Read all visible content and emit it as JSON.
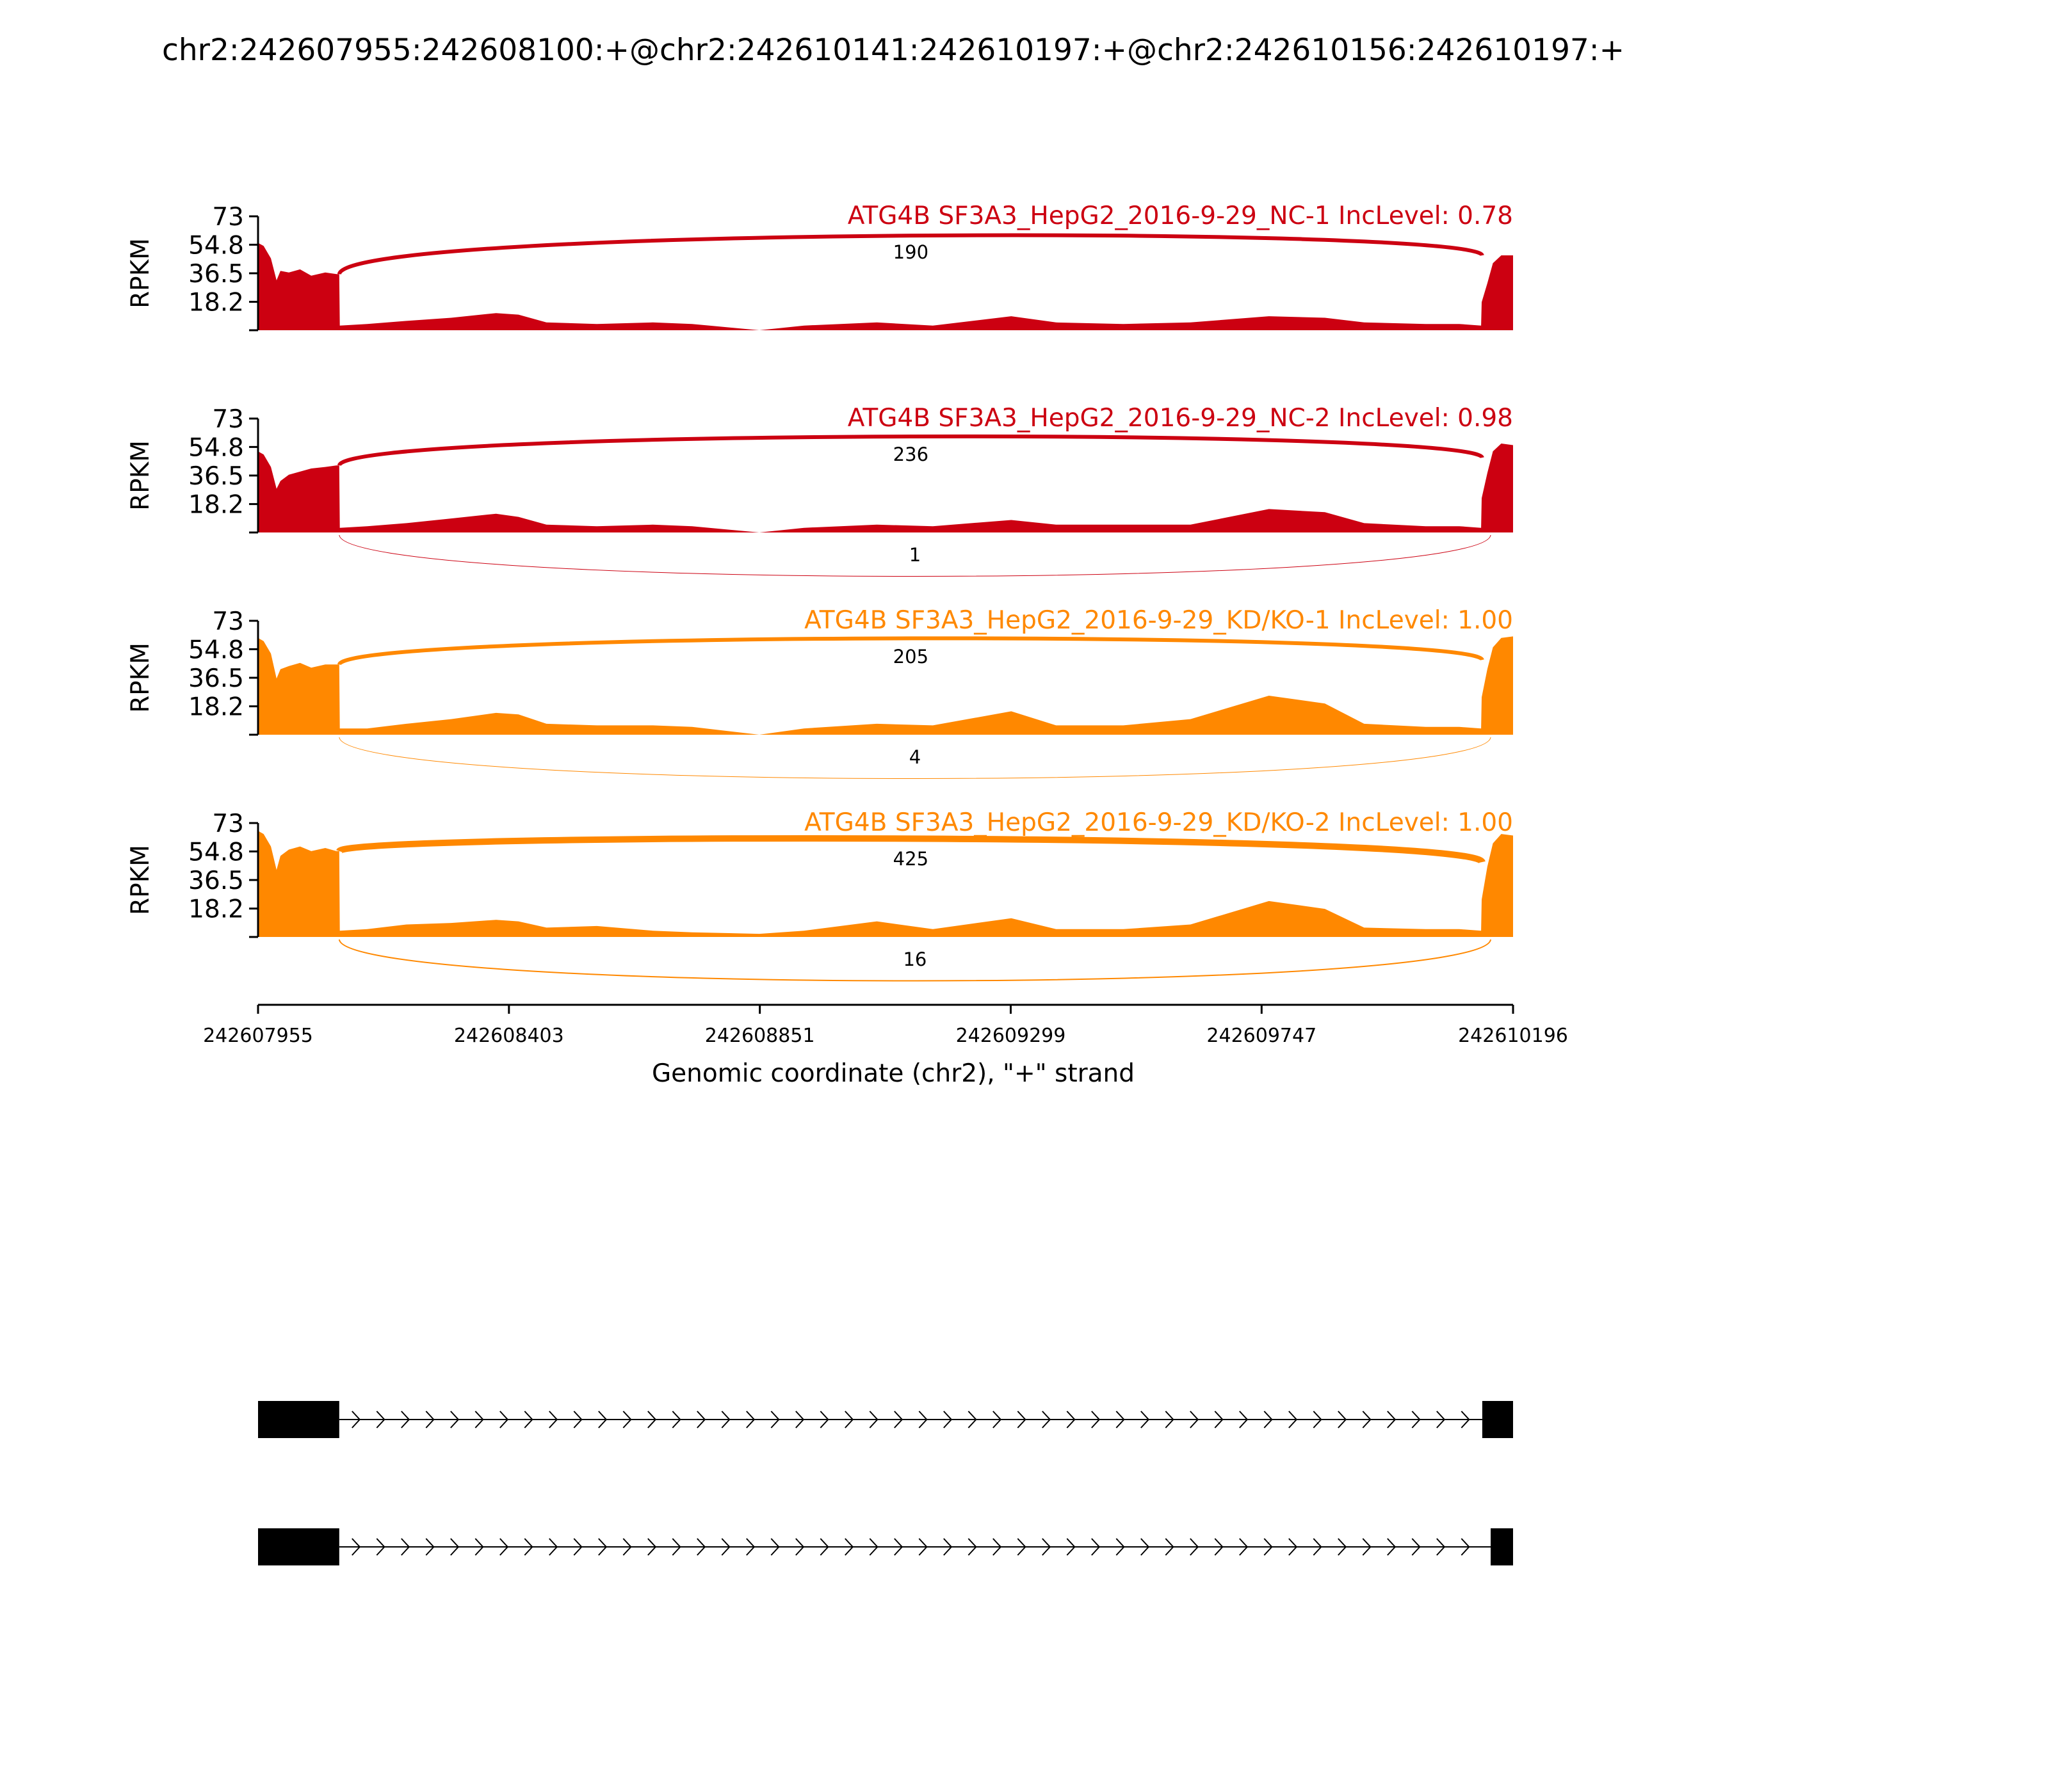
{
  "title": "chr2:242607955:242608100:+@chr2:242610141:242610197:+@chr2:242610156:242610197:+",
  "colors": {
    "nc": "#cc0011",
    "kd": "#ff8800",
    "axis": "#000000",
    "exon": "#000000"
  },
  "chart_data": {
    "type": "area",
    "title": "chr2:242607955:242608100:+@chr2:242610141:242610197:+@chr2:242610156:242610197:+",
    "xlabel": "Genomic coordinate (chr2), \"+\" strand",
    "ylabel": "RPKM",
    "xlim": [
      242607955,
      242610196
    ],
    "x_ticks": [
      "242607955",
      "242608403",
      "242608851",
      "242609299",
      "242609747",
      "242610196"
    ],
    "ylim": [
      0,
      73
    ],
    "y_ticks": [
      "73",
      "54.8",
      "36.5",
      "18.2"
    ],
    "tracks": [
      {
        "name": "ATG4B SF3A3_HepG2_2016-9-29_NC-1 IncLevel: 0.78",
        "color": "nc",
        "coverage": [
          [
            242607955,
            56
          ],
          [
            242607965,
            54
          ],
          [
            242607978,
            46
          ],
          [
            242607988,
            32
          ],
          [
            242607995,
            38
          ],
          [
            242608010,
            37
          ],
          [
            242608030,
            39
          ],
          [
            242608050,
            35
          ],
          [
            242608075,
            37
          ],
          [
            242608095,
            36
          ],
          [
            242608100,
            36
          ],
          [
            242608101,
            3
          ],
          [
            242608150,
            4
          ],
          [
            242608220,
            6
          ],
          [
            242608300,
            8
          ],
          [
            242608380,
            11
          ],
          [
            242608420,
            10
          ],
          [
            242608470,
            5
          ],
          [
            242608560,
            4
          ],
          [
            242608660,
            5
          ],
          [
            242608730,
            4
          ],
          [
            242608850,
            0
          ],
          [
            242608930,
            3
          ],
          [
            242609060,
            5
          ],
          [
            242609160,
            3
          ],
          [
            242609300,
            9
          ],
          [
            242609380,
            5
          ],
          [
            242609500,
            4
          ],
          [
            242609620,
            5
          ],
          [
            242609760,
            9
          ],
          [
            242609860,
            8
          ],
          [
            242609930,
            5
          ],
          [
            242610040,
            4
          ],
          [
            242610100,
            4
          ],
          [
            242610139,
            3
          ],
          [
            242610140,
            18
          ],
          [
            242610150,
            30
          ],
          [
            242610160,
            43
          ],
          [
            242610175,
            48
          ],
          [
            242610196,
            48
          ]
        ],
        "junctions": [
          {
            "from": 242608100,
            "to": 242610141,
            "count": "190",
            "side": "top",
            "width": 6
          }
        ]
      },
      {
        "name": "ATG4B SF3A3_HepG2_2016-9-29_NC-2 IncLevel: 0.98",
        "color": "nc",
        "coverage": [
          [
            242607955,
            52
          ],
          [
            242607965,
            50
          ],
          [
            242607978,
            42
          ],
          [
            242607988,
            28
          ],
          [
            242607995,
            33
          ],
          [
            242608010,
            37
          ],
          [
            242608030,
            39
          ],
          [
            242608050,
            41
          ],
          [
            242608075,
            42
          ],
          [
            242608095,
            43
          ],
          [
            242608100,
            43
          ],
          [
            242608101,
            3
          ],
          [
            242608150,
            4
          ],
          [
            242608220,
            6
          ],
          [
            242608300,
            9
          ],
          [
            242608380,
            12
          ],
          [
            242608420,
            10
          ],
          [
            242608470,
            5
          ],
          [
            242608560,
            4
          ],
          [
            242608660,
            5
          ],
          [
            242608730,
            4
          ],
          [
            242608850,
            0
          ],
          [
            242608930,
            3
          ],
          [
            242609060,
            5
          ],
          [
            242609160,
            4
          ],
          [
            242609300,
            8
          ],
          [
            242609380,
            5
          ],
          [
            242609500,
            5
          ],
          [
            242609620,
            5
          ],
          [
            242609760,
            15
          ],
          [
            242609860,
            13
          ],
          [
            242609930,
            6
          ],
          [
            242610040,
            4
          ],
          [
            242610100,
            4
          ],
          [
            242610139,
            3
          ],
          [
            242610140,
            22
          ],
          [
            242610150,
            38
          ],
          [
            242610160,
            52
          ],
          [
            242610175,
            57
          ],
          [
            242610196,
            56
          ]
        ],
        "junctions": [
          {
            "from": 242608100,
            "to": 242610141,
            "count": "236",
            "side": "top",
            "width": 6
          },
          {
            "from": 242608100,
            "to": 242610156,
            "count": "1",
            "side": "bottom",
            "width": 1
          }
        ]
      },
      {
        "name": "ATG4B SF3A3_HepG2_2016-9-29_KD/KO-1 IncLevel: 1.00",
        "color": "kd",
        "coverage": [
          [
            242607955,
            62
          ],
          [
            242607965,
            60
          ],
          [
            242607978,
            52
          ],
          [
            242607988,
            36
          ],
          [
            242607995,
            42
          ],
          [
            242608010,
            44
          ],
          [
            242608030,
            46
          ],
          [
            242608050,
            43
          ],
          [
            242608075,
            45
          ],
          [
            242608095,
            45
          ],
          [
            242608100,
            45
          ],
          [
            242608101,
            4
          ],
          [
            242608150,
            4
          ],
          [
            242608220,
            7
          ],
          [
            242608300,
            10
          ],
          [
            242608380,
            14
          ],
          [
            242608420,
            13
          ],
          [
            242608470,
            7
          ],
          [
            242608560,
            6
          ],
          [
            242608660,
            6
          ],
          [
            242608730,
            5
          ],
          [
            242608850,
            0
          ],
          [
            242608930,
            4
          ],
          [
            242609060,
            7
          ],
          [
            242609160,
            6
          ],
          [
            242609300,
            15
          ],
          [
            242609380,
            6
          ],
          [
            242609500,
            6
          ],
          [
            242609620,
            10
          ],
          [
            242609760,
            25
          ],
          [
            242609860,
            20
          ],
          [
            242609930,
            7
          ],
          [
            242610040,
            5
          ],
          [
            242610100,
            5
          ],
          [
            242610139,
            4
          ],
          [
            242610140,
            24
          ],
          [
            242610150,
            42
          ],
          [
            242610160,
            56
          ],
          [
            242610175,
            62
          ],
          [
            242610196,
            63
          ]
        ],
        "junctions": [
          {
            "from": 242608100,
            "to": 242610141,
            "count": "205",
            "side": "top",
            "width": 6
          },
          {
            "from": 242608100,
            "to": 242610156,
            "count": "4",
            "side": "bottom",
            "width": 1
          }
        ]
      },
      {
        "name": "ATG4B SF3A3_HepG2_2016-9-29_KD/KO-2 IncLevel: 1.00",
        "color": "kd",
        "coverage": [
          [
            242607955,
            68
          ],
          [
            242607965,
            66
          ],
          [
            242607978,
            58
          ],
          [
            242607988,
            43
          ],
          [
            242607995,
            52
          ],
          [
            242608010,
            56
          ],
          [
            242608030,
            58
          ],
          [
            242608050,
            55
          ],
          [
            242608075,
            57
          ],
          [
            242608095,
            55
          ],
          [
            242608100,
            55
          ],
          [
            242608101,
            4
          ],
          [
            242608150,
            5
          ],
          [
            242608220,
            8
          ],
          [
            242608300,
            9
          ],
          [
            242608380,
            11
          ],
          [
            242608420,
            10
          ],
          [
            242608470,
            6
          ],
          [
            242608560,
            7
          ],
          [
            242608660,
            4
          ],
          [
            242608730,
            3
          ],
          [
            242608850,
            2
          ],
          [
            242608930,
            4
          ],
          [
            242609060,
            10
          ],
          [
            242609160,
            5
          ],
          [
            242609300,
            12
          ],
          [
            242609380,
            5
          ],
          [
            242609500,
            5
          ],
          [
            242609620,
            8
          ],
          [
            242609760,
            23
          ],
          [
            242609860,
            18
          ],
          [
            242609930,
            6
          ],
          [
            242610040,
            5
          ],
          [
            242610100,
            5
          ],
          [
            242610139,
            4
          ],
          [
            242610140,
            24
          ],
          [
            242610150,
            45
          ],
          [
            242610160,
            60
          ],
          [
            242610175,
            66
          ],
          [
            242610196,
            65
          ]
        ],
        "junctions": [
          {
            "from": 242608100,
            "to": 242610141,
            "count": "425",
            "side": "top",
            "width": 10
          },
          {
            "from": 242608100,
            "to": 242610156,
            "count": "16",
            "side": "bottom",
            "width": 2
          }
        ]
      }
    ],
    "gene_models": [
      {
        "exons": [
          [
            242607955,
            242608100
          ],
          [
            242610141,
            242610196
          ]
        ]
      },
      {
        "exons": [
          [
            242607955,
            242608100
          ],
          [
            242610156,
            242610196
          ]
        ]
      }
    ]
  }
}
